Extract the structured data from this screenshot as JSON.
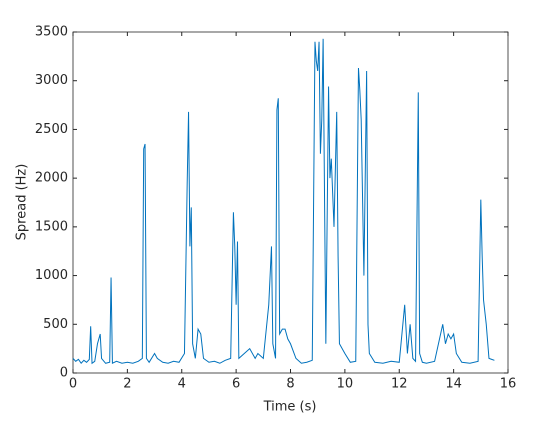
{
  "chart_data": {
    "type": "line",
    "xlabel": "Time (s)",
    "ylabel": "Spread (Hz)",
    "xlim": [
      0,
      16
    ],
    "xticks": [
      0,
      2,
      4,
      6,
      8,
      10,
      12,
      14,
      16
    ],
    "ylim": [
      0,
      3500
    ],
    "yticks": [
      0,
      500,
      1000,
      1500,
      2000,
      2500,
      3000,
      3500
    ],
    "series": [
      {
        "color": "#0072bd",
        "x": [
          0,
          0.1,
          0.2,
          0.3,
          0.4,
          0.5,
          0.6,
          0.65,
          0.7,
          0.8,
          0.9,
          1.0,
          1.05,
          1.2,
          1.35,
          1.4,
          1.45,
          1.6,
          1.8,
          2.0,
          2.2,
          2.4,
          2.55,
          2.6,
          2.65,
          2.7,
          2.8,
          3.0,
          3.1,
          3.3,
          3.5,
          3.7,
          3.9,
          4.1,
          4.2,
          4.25,
          4.3,
          4.35,
          4.4,
          4.5,
          4.6,
          4.7,
          4.8,
          5.0,
          5.2,
          5.4,
          5.6,
          5.8,
          5.9,
          5.95,
          6.0,
          6.05,
          6.1,
          6.3,
          6.5,
          6.7,
          6.8,
          7.0,
          7.2,
          7.3,
          7.35,
          7.45,
          7.5,
          7.55,
          7.6,
          7.7,
          7.8,
          7.9,
          8.0,
          8.2,
          8.4,
          8.6,
          8.8,
          8.9,
          8.95,
          9.0,
          9.05,
          9.1,
          9.15,
          9.2,
          9.3,
          9.4,
          9.45,
          9.5,
          9.6,
          9.7,
          9.75,
          9.8,
          10.0,
          10.2,
          10.4,
          10.5,
          10.55,
          10.6,
          10.7,
          10.8,
          10.85,
          10.9,
          11.1,
          11.4,
          11.7,
          12.0,
          12.2,
          12.3,
          12.4,
          12.5,
          12.6,
          12.7,
          12.75,
          12.85,
          13.0,
          13.3,
          13.6,
          13.7,
          13.8,
          13.9,
          14.0,
          14.1,
          14.3,
          14.6,
          14.9,
          15.0,
          15.05,
          15.1,
          15.2,
          15.3,
          15.4,
          15.5
        ],
        "values": [
          150,
          120,
          140,
          100,
          130,
          110,
          140,
          480,
          100,
          120,
          300,
          400,
          150,
          100,
          110,
          980,
          100,
          120,
          100,
          110,
          100,
          120,
          150,
          2300,
          2350,
          150,
          110,
          200,
          150,
          110,
          100,
          120,
          110,
          200,
          1950,
          2680,
          1300,
          1700,
          300,
          150,
          450,
          400,
          150,
          110,
          120,
          100,
          130,
          150,
          1650,
          1300,
          700,
          1350,
          150,
          200,
          250,
          150,
          200,
          150,
          700,
          1300,
          300,
          150,
          2700,
          2820,
          400,
          450,
          450,
          350,
          300,
          150,
          100,
          110,
          130,
          3400,
          3200,
          3100,
          3400,
          2250,
          2600,
          3430,
          300,
          2940,
          2000,
          2200,
          1500,
          2680,
          1200,
          300,
          200,
          110,
          120,
          3130,
          2900,
          2600,
          1000,
          3100,
          500,
          200,
          110,
          100,
          120,
          110,
          700,
          200,
          500,
          150,
          120,
          2880,
          200,
          110,
          100,
          120,
          500,
          300,
          400,
          350,
          400,
          200,
          110,
          100,
          120,
          1780,
          1200,
          750,
          500,
          150,
          140,
          130
        ]
      }
    ]
  }
}
